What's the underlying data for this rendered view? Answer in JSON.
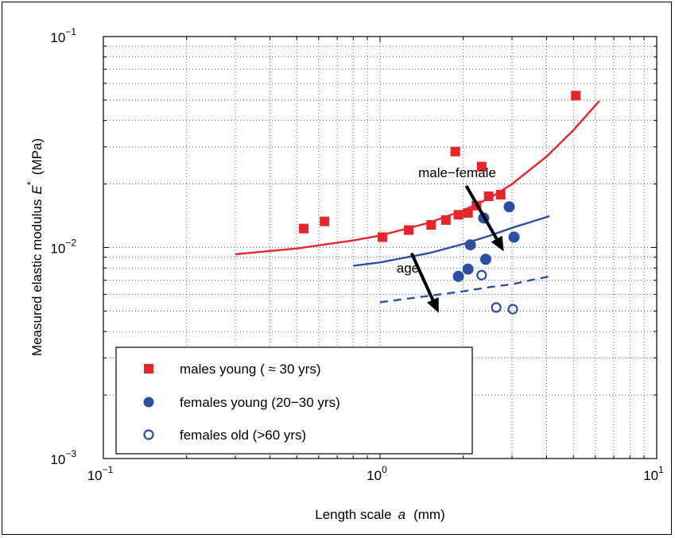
{
  "chart_data": {
    "type": "scatter",
    "xscale": "log",
    "yscale": "log",
    "xlim": [
      0.1,
      10
    ],
    "ylim": [
      0.001,
      0.1
    ],
    "grid": true,
    "xlabel_main": "Length scale",
    "xlabel_var": "a",
    "xlabel_unit": "(mm)",
    "ylabel_main": "Measured elastic modulus",
    "ylabel_var": "E",
    "ylabel_sup": "*",
    "ylabel_unit": "(MPa)",
    "x_ticks": [
      {
        "value": 0.1,
        "base": "10",
        "exp": "−1"
      },
      {
        "value": 1,
        "base": "10",
        "exp": "0"
      },
      {
        "value": 10,
        "base": "10",
        "exp": "1"
      }
    ],
    "y_ticks": [
      {
        "value": 0.001,
        "base": "10",
        "exp": "−3"
      },
      {
        "value": 0.01,
        "base": "10",
        "exp": "−2"
      },
      {
        "value": 0.1,
        "base": "10",
        "exp": "−1"
      }
    ],
    "legend_position": "bottom-left",
    "series": [
      {
        "name": "males young ( ≈ 30 yrs)",
        "marker": "square",
        "color": "#e8252b",
        "points": [
          [
            0.53,
            0.0123
          ],
          [
            0.63,
            0.0133
          ],
          [
            1.02,
            0.0112
          ],
          [
            1.27,
            0.0121
          ],
          [
            1.53,
            0.0128
          ],
          [
            1.73,
            0.0135
          ],
          [
            1.92,
            0.0143
          ],
          [
            2.08,
            0.0146
          ],
          [
            2.23,
            0.0158
          ],
          [
            2.47,
            0.0175
          ],
          [
            2.73,
            0.0178
          ],
          [
            1.87,
            0.0285
          ],
          [
            2.33,
            0.0242
          ],
          [
            5.1,
            0.0525
          ]
        ]
      },
      {
        "name": "females young (20−30 yrs)",
        "marker": "circle",
        "color": "#2b4fa3",
        "points": [
          [
            2.12,
            0.0103
          ],
          [
            2.37,
            0.0138
          ],
          [
            2.93,
            0.0156
          ],
          [
            3.05,
            0.0112
          ],
          [
            2.41,
            0.0088
          ],
          [
            2.08,
            0.0079
          ],
          [
            1.92,
            0.0073
          ]
        ]
      },
      {
        "name": "females old (>60 yrs)",
        "marker": "circle-open",
        "color": "#2b4fa3",
        "points": [
          [
            2.33,
            0.0074
          ],
          [
            2.63,
            0.0052
          ],
          [
            3.02,
            0.0051
          ]
        ]
      }
    ],
    "fits": [
      {
        "color": "#e8252b",
        "dash": false,
        "x": [
          0.3,
          0.5,
          0.8,
          1.0,
          1.5,
          2.0,
          2.5,
          3.0,
          4.0,
          5.0,
          6.2
        ],
        "y": [
          0.0093,
          0.0099,
          0.0108,
          0.0114,
          0.0131,
          0.015,
          0.0172,
          0.02,
          0.027,
          0.036,
          0.0495
        ]
      },
      {
        "color": "#2b4fa3",
        "dash": false,
        "x": [
          0.8,
          1.0,
          1.5,
          2.0,
          2.5,
          3.0,
          3.5,
          4.1
        ],
        "y": [
          0.0082,
          0.0085,
          0.0094,
          0.0104,
          0.0114,
          0.0124,
          0.0132,
          0.0141
        ]
      },
      {
        "color": "#2b4fa3",
        "dash": true,
        "x": [
          1.0,
          1.5,
          2.0,
          2.5,
          3.0,
          3.5,
          4.1
        ],
        "y": [
          0.0055,
          0.0059,
          0.0062,
          0.0065,
          0.0067,
          0.007,
          0.0073
        ]
      }
    ],
    "annotations": [
      {
        "text": "male−female",
        "x": 1.9,
        "y": 0.0215
      },
      {
        "text": "age",
        "x": 1.26,
        "y": 0.0076
      }
    ],
    "arrows": [
      {
        "from": [
          2.05,
          0.0196
        ],
        "to": [
          2.8,
          0.0096
        ]
      },
      {
        "from": [
          1.3,
          0.0094
        ],
        "to": [
          1.63,
          0.0049
        ]
      }
    ]
  }
}
